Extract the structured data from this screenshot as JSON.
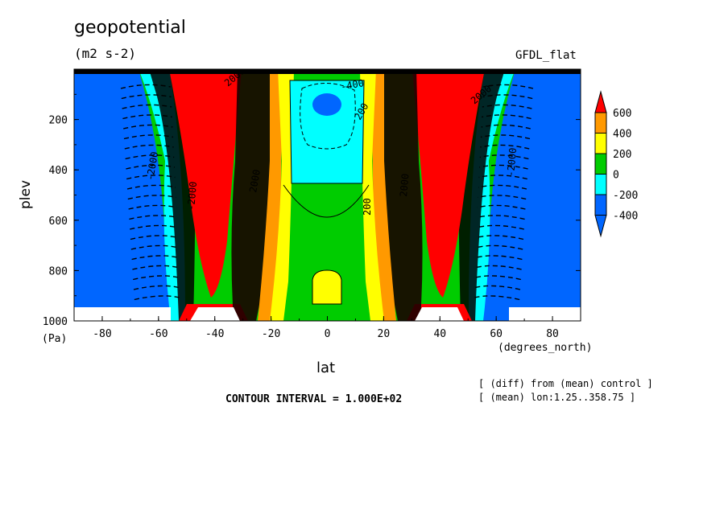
{
  "chart_data": {
    "type": "heatmap",
    "title": "geopotential",
    "units": "(m2 s-2)",
    "run_label": "GFDL_flat",
    "xlabel": "lat",
    "ylabel": "plev",
    "x_unit": "(degrees_north)",
    "y_unit": "(Pa)",
    "x_ticks": [
      -80,
      -60,
      -40,
      -20,
      0,
      20,
      40,
      60,
      80
    ],
    "y_ticks": [
      200,
      400,
      600,
      800,
      1000
    ],
    "xlim": [
      -90,
      90
    ],
    "ylim": [
      1000,
      0
    ],
    "y_inverted": true,
    "contour_interval_text": "CONTOUR INTERVAL = 1.000E+02",
    "notes": [
      "[ (diff) from (mean) control ]",
      "[ (mean) lon:1.25..358.75 ]"
    ],
    "colorbar": {
      "labels": [
        "600",
        "400",
        "200",
        "0",
        "-200",
        "-400"
      ],
      "colors": [
        "#ff0000",
        "#ff9900",
        "#ffff00",
        "#00cc00",
        "#00ffff",
        "#0066ff"
      ]
    },
    "regions": [
      {
        "name": "south-polar-low",
        "lat_range": [
          -90,
          -60
        ],
        "level": "< -400",
        "color": "#0066ff"
      },
      {
        "name": "south-high",
        "lat_range": [
          -50,
          -32
        ],
        "level": "> 600",
        "color": "#ff0000"
      },
      {
        "name": "tropical-band",
        "lat_range": [
          -15,
          15
        ],
        "level": "0 to 200",
        "color": "#00cc00"
      },
      {
        "name": "upper-tropical-low",
        "lat_range": [
          -10,
          10
        ],
        "plev_range": [
          50,
          450
        ],
        "level": "-200 to -400",
        "color": "#00ffff"
      },
      {
        "name": "north-high",
        "lat_range": [
          32,
          52
        ],
        "level": "> 600",
        "color": "#ff0000"
      },
      {
        "name": "north-polar-low",
        "lat_range": [
          62,
          90
        ],
        "level": "< -400",
        "color": "#0066ff"
      }
    ],
    "contour_labels": [
      "2000",
      "2000",
      "2000",
      "-400",
      "200",
      "200",
      "2000",
      "-2000",
      "-2000",
      "-2000"
    ]
  }
}
